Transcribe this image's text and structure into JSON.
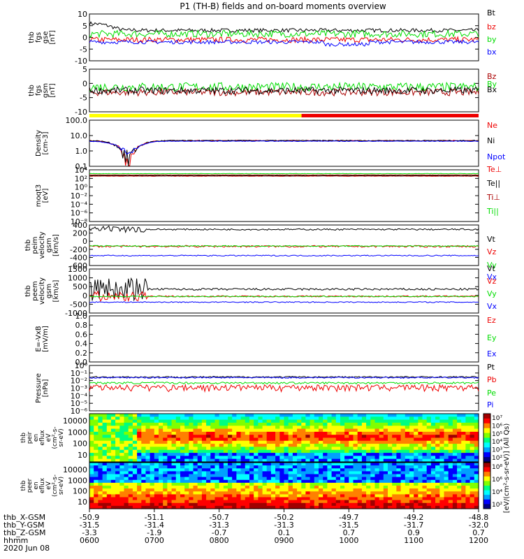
{
  "chart_data": {
    "type": "line",
    "title": "P1 (TH-B) fields and on-board moments overview",
    "date": "2020 Jun 08",
    "x_ticks": [
      "0600",
      "0700",
      "0800",
      "0900",
      "1000",
      "1100",
      "1200"
    ],
    "ephemeris": [
      {
        "label": "thb_X-GSM",
        "values": [
          "-50.9",
          "-51.1",
          "-50.7",
          "-50.2",
          "-49.7",
          "-49.2",
          "-48.8"
        ]
      },
      {
        "label": "thb_Y-GSM",
        "values": [
          "-31.5",
          "-31.4",
          "-31.3",
          "-31.3",
          "-31.5",
          "-31.7",
          "-32.0"
        ]
      },
      {
        "label": "thb_Z-GSM",
        "values": [
          "-3.3",
          "-1.9",
          "-0.7",
          "0.1",
          "0.7",
          "0.9",
          "0.7"
        ]
      },
      {
        "label": "hhmm",
        "values": [
          "0600",
          "0700",
          "0800",
          "0900",
          "1000",
          "1100",
          "1200"
        ]
      }
    ],
    "mode_bar": {
      "colors": [
        "#ffff00",
        "#ee0000"
      ],
      "switch_time": "0928"
    },
    "panels": [
      {
        "id": "fgs_gse",
        "ylabel": [
          "thb",
          "fgs",
          "gse",
          "[nT]"
        ],
        "scale": "linear",
        "ylim": [
          -10,
          10
        ],
        "ticks": [
          "10",
          "5",
          "0",
          "-5",
          "-10"
        ],
        "series": [
          {
            "name": "Bt",
            "color": "#000000"
          },
          {
            "name": "bz",
            "color": "#ee0000"
          },
          {
            "name": "by",
            "color": "#00dd00"
          },
          {
            "name": "bx",
            "color": "#0000ff"
          }
        ]
      },
      {
        "id": "fgs_gsm",
        "ylabel": [
          "thb",
          "fgs",
          "gsm",
          "[nT]"
        ],
        "scale": "linear",
        "ylim": [
          -14,
          10
        ],
        "ticks": [
          "5",
          "0",
          "-5",
          "-10"
        ],
        "series": [
          {
            "name": "Bz",
            "color": "#aa0000"
          },
          {
            "name": "By",
            "color": "#00dd00"
          },
          {
            "name": "Bx",
            "color": "#000000"
          }
        ]
      },
      {
        "id": "density",
        "ylabel": [
          "Density",
          "[cm-3]"
        ],
        "scale": "log",
        "ylim": [
          0.01,
          200
        ],
        "ticks": [
          "100.0",
          "10.0",
          "1.0",
          "0.1"
        ],
        "series": [
          {
            "name": "Ne",
            "color": "#ee0000"
          },
          {
            "name": "Ni",
            "color": "#000000"
          },
          {
            "name": "Npot",
            "color": "#0000ff"
          }
        ]
      },
      {
        "id": "temperature",
        "ylabel": [
          "moqt3",
          "[eV]"
        ],
        "scale": "log",
        "ylim": [
          1e-10,
          10000.0
        ],
        "ticks": [
          "10⁴",
          "10²",
          "10⁰",
          "10⁻²",
          "10⁻⁴",
          "10⁻⁶",
          "10⁻⁸"
        ],
        "series": [
          {
            "name": "Te⊥",
            "color": "#ee0000"
          },
          {
            "name": "Te||",
            "color": "#000000"
          },
          {
            "name": "Ti⊥",
            "color": "#aa0000"
          },
          {
            "name": "Ti||",
            "color": "#00dd00"
          }
        ]
      },
      {
        "id": "vel_i",
        "ylabel": [
          "thb",
          "peim",
          "velocity",
          "gsm",
          "[km/s]"
        ],
        "scale": "linear",
        "ylim": [
          -600,
          500
        ],
        "ticks": [
          "400",
          "200",
          "0",
          "-200",
          "-400",
          "-600"
        ],
        "series": [
          {
            "name": "Vt",
            "color": "#000000"
          },
          {
            "name": "Vz",
            "color": "#ee0000"
          },
          {
            "name": "Vy",
            "color": "#00dd00"
          },
          {
            "name": "Vx",
            "color": "#0000ff"
          }
        ]
      },
      {
        "id": "vel_e",
        "ylabel": [
          "thb",
          "peem",
          "velocity",
          "gsm",
          "[km/s]"
        ],
        "scale": "linear",
        "ylim": [
          -1000,
          1500
        ],
        "ticks": [
          "1500",
          "1000",
          "500",
          "0",
          "-500",
          "-1000"
        ],
        "series": [
          {
            "name": "Vt",
            "color": "#000000"
          },
          {
            "name": "Vz",
            "color": "#ee0000"
          },
          {
            "name": "Vy",
            "color": "#00dd00"
          },
          {
            "name": "Vx",
            "color": "#0000ff"
          }
        ]
      },
      {
        "id": "efield",
        "ylabel": [
          "E=-VxB",
          "[mV/m]"
        ],
        "scale": "linear",
        "ylim": [
          0,
          1
        ],
        "ticks": [
          "1.0",
          "0.8",
          "0.6",
          "0.4",
          "0.2",
          "0.0"
        ],
        "series": [
          {
            "name": "Ez",
            "color": "#ee0000"
          },
          {
            "name": "Ey",
            "color": "#00dd00"
          },
          {
            "name": "Ex",
            "color": "#0000ff"
          }
        ]
      },
      {
        "id": "pressure",
        "ylabel": [
          "Pressure",
          "[nPa]"
        ],
        "scale": "log",
        "ylim": [
          1e-06,
          1
        ],
        "ticks": [
          "10⁰",
          "10⁻¹",
          "10⁻²",
          "10⁻³",
          "10⁻⁴",
          "10⁻⁵",
          "10⁻⁶"
        ],
        "series": [
          {
            "name": "Pt",
            "color": "#000000"
          },
          {
            "name": "Pb",
            "color": "#ee0000"
          },
          {
            "name": "Pe",
            "color": "#00dd00"
          },
          {
            "name": "Pi",
            "color": "#0000ff"
          }
        ]
      }
    ],
    "spectrograms": [
      {
        "id": "ion_spec",
        "ylabel": [
          "thb",
          "peir",
          "en",
          "eflux",
          "eV",
          "(cm²-s-",
          "sr-eV)"
        ],
        "yticks": [
          "10000",
          "1000",
          "100",
          "10"
        ],
        "colorbar_ticks": [
          "10⁷",
          "10⁶",
          "10⁵",
          "10⁴",
          "10³",
          "10²"
        ]
      },
      {
        "id": "elec_spec",
        "ylabel": [
          "thb",
          "peer",
          "en",
          "eflux",
          "eV",
          "(cm²-s-",
          "sr-eV)"
        ],
        "yticks": [
          "10000",
          "1000",
          "100",
          "10"
        ],
        "colorbar_ticks": [
          "10⁸",
          "10⁶",
          "10⁴",
          "10²"
        ]
      }
    ],
    "colorbar_label": "[eV/(cm²-s-sr-eV)] (All Qs)"
  }
}
